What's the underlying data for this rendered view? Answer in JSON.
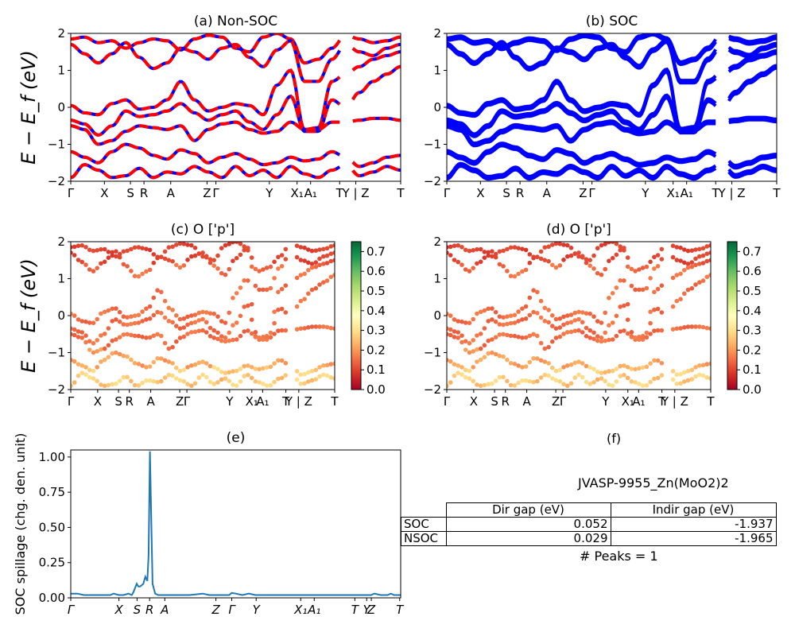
{
  "chart_data": [
    {
      "id": "a",
      "type": "line",
      "title": "(a) Non-SOC",
      "ylabel": "E − E_f (eV)",
      "ylim": [
        -2,
        2
      ],
      "yticks": [
        -2,
        -1,
        0,
        1,
        2
      ],
      "kpath_labels": [
        "Γ",
        "X",
        "S",
        "R",
        "A",
        "Z",
        "Γ",
        "Y",
        "X₁",
        "A₁",
        "T",
        "Y | Z",
        "T"
      ],
      "kpath_positions": [
        0,
        0.102,
        0.181,
        0.222,
        0.303,
        0.413,
        0.44,
        0.602,
        0.686,
        0.727,
        0.815,
        0.864,
        1.0
      ],
      "series": [
        {
          "style": "solid-blue",
          "color": "#0000ff"
        },
        {
          "style": "dashed-red",
          "color": "#ff0000"
        }
      ],
      "bands": [
        [
          1.85,
          1.9,
          1.75,
          1.8,
          1.6,
          1.75,
          1.85,
          1.8,
          1.55,
          1.85,
          1.95,
          1.9,
          1.6,
          1.5,
          1.9,
          2.0,
          1.85,
          1.2,
          1.3,
          1.6,
          1.95,
          1.85,
          1.75,
          1.8,
          1.9
        ],
        [
          1.7,
          1.45,
          1.2,
          1.45,
          1.75,
          1.35,
          1.05,
          1.2,
          1.6,
          1.5,
          1.3,
          1.6,
          1.7,
          1.35,
          1.1,
          1.55,
          1.8,
          0.7,
          0.7,
          1.3,
          1.7,
          1.5,
          1.4,
          1.6,
          1.7
        ],
        [
          0.05,
          -0.15,
          -0.2,
          0.1,
          0.2,
          -0.05,
          0.0,
          0.2,
          0.7,
          0.2,
          -0.1,
          0.0,
          0.1,
          0.05,
          -0.2,
          0.6,
          1.0,
          -0.6,
          -0.55,
          0.7,
          0.9,
          1.1,
          1.3,
          1.4,
          1.5
        ],
        [
          -0.35,
          -0.45,
          -0.75,
          -0.5,
          -0.1,
          -0.25,
          -0.2,
          -0.1,
          0.1,
          -0.15,
          -0.35,
          -0.2,
          -0.1,
          -0.4,
          -0.6,
          -0.2,
          0.3,
          -0.65,
          -0.65,
          0.2,
          0.0,
          0.4,
          0.7,
          0.9,
          1.1
        ],
        [
          -0.5,
          -0.6,
          -1.0,
          -0.9,
          -0.65,
          -0.5,
          -0.55,
          -0.6,
          -0.5,
          -0.9,
          -0.6,
          -0.45,
          -0.4,
          -0.6,
          -0.7,
          -0.65,
          -0.4,
          -0.6,
          -0.6,
          -0.4,
          -0.4,
          -0.35,
          -0.3,
          -0.3,
          -0.35
        ],
        [
          -1.2,
          -1.35,
          -1.5,
          -1.2,
          -1.0,
          -1.1,
          -1.3,
          -1.4,
          -1.15,
          -1.25,
          -1.5,
          -1.35,
          -1.25,
          -1.4,
          -1.55,
          -1.5,
          -1.35,
          -1.45,
          -1.4,
          -1.2,
          -1.35,
          -1.6,
          -1.5,
          -1.35,
          -1.3
        ],
        [
          -1.9,
          -1.55,
          -1.7,
          -1.9,
          -1.85,
          -1.65,
          -1.9,
          -1.75,
          -1.8,
          -1.6,
          -1.75,
          -1.9,
          -1.6,
          -1.85,
          -1.7,
          -1.9,
          -1.6,
          -1.8,
          -1.9,
          -1.7,
          -1.55,
          -1.85,
          -1.75,
          -1.6,
          -1.7
        ]
      ]
    },
    {
      "id": "b",
      "type": "line",
      "title": "(b) SOC",
      "ylim": [
        -2,
        2
      ],
      "yticks": [
        -2,
        -1,
        0,
        1,
        2
      ],
      "kpath_labels": [
        "Γ",
        "X",
        "S",
        "R",
        "A",
        "Z",
        "Γ",
        "Y",
        "X₁",
        "A₁",
        "T",
        "Y | Z",
        "T"
      ],
      "kpath_positions": [
        0,
        0.102,
        0.181,
        0.222,
        0.303,
        0.413,
        0.44,
        0.602,
        0.686,
        0.727,
        0.815,
        0.864,
        1.0
      ],
      "series": [
        {
          "style": "solid-blue",
          "color": "#0000ff"
        }
      ]
    },
    {
      "id": "c",
      "type": "scatter",
      "title": "(c)  O ['p']",
      "ylabel": "E − E_f (eV)",
      "ylim": [
        -2,
        2
      ],
      "yticks": [
        -2,
        -1,
        0,
        1,
        2
      ],
      "colorbar": {
        "min": 0.0,
        "max": 0.75,
        "ticks": [
          0.0,
          0.1,
          0.2,
          0.3,
          0.4,
          0.5,
          0.6,
          0.7
        ],
        "colormap": "RdYlGn"
      },
      "kpath_labels": [
        "Γ",
        "X",
        "S",
        "R",
        "A",
        "Z",
        "Γ",
        "Y",
        "X₁",
        "A₁",
        "T",
        "Y | Z",
        "T"
      ],
      "kpath_positions": [
        0,
        0.102,
        0.181,
        0.222,
        0.303,
        0.413,
        0.44,
        0.602,
        0.686,
        0.727,
        0.815,
        0.864,
        1.0
      ]
    },
    {
      "id": "d",
      "type": "scatter",
      "title": "(d) O ['p']",
      "ylim": [
        -2,
        2
      ],
      "yticks": [
        -2,
        -1,
        0,
        1,
        2
      ],
      "colorbar": {
        "min": 0.0,
        "max": 0.75,
        "ticks": [
          0.0,
          0.1,
          0.2,
          0.3,
          0.4,
          0.5,
          0.6,
          0.7
        ],
        "colormap": "RdYlGn"
      },
      "kpath_labels": [
        "Γ",
        "X",
        "S",
        "R",
        "A",
        "Z",
        "Γ",
        "Y",
        "X₁",
        "A₁",
        "T",
        "Y | Z",
        "T"
      ],
      "kpath_positions": [
        0,
        0.102,
        0.181,
        0.222,
        0.303,
        0.413,
        0.44,
        0.602,
        0.686,
        0.727,
        0.815,
        0.864,
        1.0
      ]
    },
    {
      "id": "e",
      "type": "line",
      "title": "(e)",
      "ylabel": "SOC spillage (chg. den. unit)",
      "ylim": [
        0,
        1.05
      ],
      "yticks": [
        0.0,
        0.25,
        0.5,
        0.75,
        1.0
      ],
      "kpath_labels": [
        "Γ",
        "X",
        "S",
        "R",
        "A",
        "Z",
        "Γ",
        "Y",
        "X₁",
        "A₁",
        "T",
        "Y",
        "Z",
        "T"
      ],
      "kpath_positions": [
        0,
        0.146,
        0.201,
        0.239,
        0.285,
        0.44,
        0.488,
        0.562,
        0.697,
        0.738,
        0.861,
        0.897,
        0.911,
        0.997
      ],
      "series": [
        {
          "color": "#1f77b4",
          "x": [
            0,
            0.02,
            0.04,
            0.08,
            0.1,
            0.12,
            0.13,
            0.146,
            0.16,
            0.175,
            0.185,
            0.19,
            0.2,
            0.205,
            0.21,
            0.215,
            0.22,
            0.226,
            0.232,
            0.236,
            0.24,
            0.244,
            0.248,
            0.256,
            0.265,
            0.285,
            0.3,
            0.33,
            0.36,
            0.4,
            0.42,
            0.44,
            0.45,
            0.46,
            0.47,
            0.48,
            0.488,
            0.5,
            0.52,
            0.54,
            0.56,
            0.6,
            0.65,
            0.7,
            0.75,
            0.8,
            0.85,
            0.86,
            0.88,
            0.9,
            0.91,
            0.92,
            0.94,
            0.96,
            0.97,
            0.98,
            1.0
          ],
          "y": [
            0.03,
            0.03,
            0.02,
            0.02,
            0.02,
            0.02,
            0.03,
            0.02,
            0.02,
            0.03,
            0.02,
            0.04,
            0.1,
            0.08,
            0.08,
            0.09,
            0.1,
            0.15,
            0.12,
            0.3,
            1.04,
            0.55,
            0.1,
            0.03,
            0.02,
            0.02,
            0.02,
            0.02,
            0.02,
            0.03,
            0.02,
            0.02,
            0.02,
            0.02,
            0.02,
            0.02,
            0.035,
            0.03,
            0.02,
            0.03,
            0.02,
            0.02,
            0.02,
            0.02,
            0.02,
            0.02,
            0.02,
            0.02,
            0.02,
            0.02,
            0.02,
            0.03,
            0.02,
            0.02,
            0.03,
            0.02,
            0.02
          ]
        }
      ]
    }
  ],
  "panel_f": {
    "title": "(f)",
    "material": "JVASP-9955_Zn(MoO2)2",
    "table": {
      "headers": [
        "Dir gap (eV)",
        "Indir gap (eV)"
      ],
      "rows": [
        {
          "label": "SOC",
          "dir": "0.052",
          "indir": "-1.937"
        },
        {
          "label": "NSOC",
          "dir": "0.029",
          "indir": "-1.965"
        }
      ]
    },
    "peaks": "# Peaks = 1"
  }
}
